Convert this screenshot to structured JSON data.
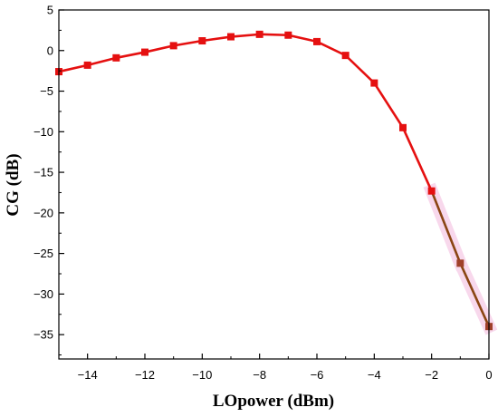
{
  "chart_data": {
    "type": "line",
    "xlabel": "LOpower (dBm)",
    "ylabel": "CG (dB)",
    "xlim": [
      -15,
      0
    ],
    "ylim": [
      -38,
      5
    ],
    "x_ticks": [
      -14,
      -12,
      -10,
      -8,
      -6,
      -4,
      -2,
      0
    ],
    "x_tick_labels": [
      "−14",
      "−12",
      "−10",
      "−8",
      "−6",
      "−4",
      "−2",
      "0"
    ],
    "y_ticks": [
      5,
      0,
      -5,
      -10,
      -15,
      -20,
      -25,
      -30,
      -35
    ],
    "y_tick_labels": [
      "5",
      "0",
      "−5",
      "−10",
      "−15",
      "−20",
      "−25",
      "−30",
      "−35"
    ],
    "grid": false,
    "legend": "none",
    "colors": {
      "line": "#e51010",
      "marker": "#e51010",
      "tail_line": "#8b4513",
      "tail_marker": "#a0402a",
      "tail_halo": "#f8d8ec"
    },
    "series": [
      {
        "x": [
          -15,
          -14,
          -13,
          -12,
          -11,
          -10,
          -9,
          -8,
          -7,
          -6,
          -5,
          -4,
          -3,
          -2,
          -1,
          0
        ],
        "values": [
          -2.6,
          -1.8,
          -0.9,
          -0.2,
          0.6,
          1.2,
          1.7,
          2.0,
          1.9,
          1.1,
          -0.6,
          -4.0,
          -9.5,
          -17.3,
          -26.2,
          -34.0
        ]
      }
    ]
  }
}
